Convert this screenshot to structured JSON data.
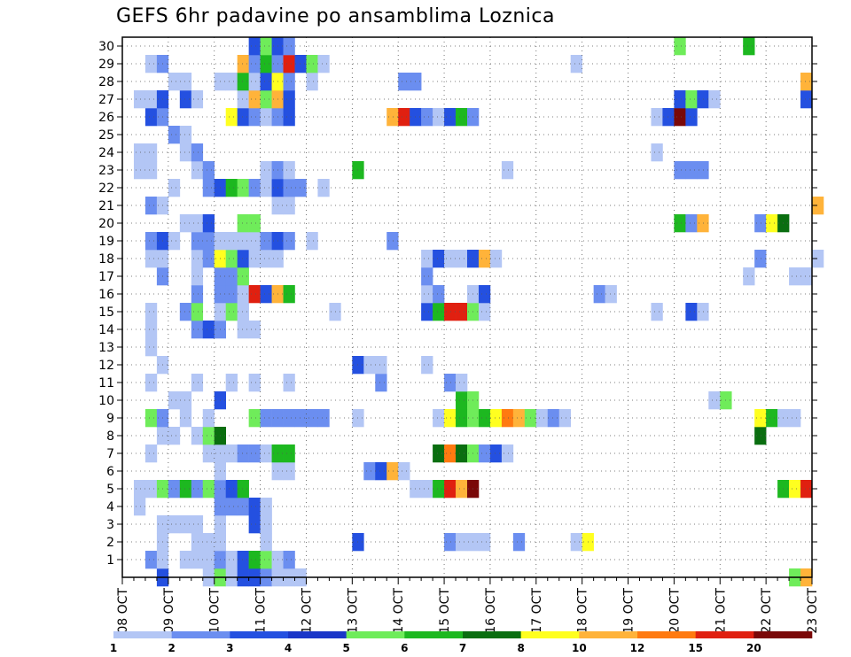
{
  "chart_data": {
    "type": "heatmap",
    "title": "GEFS 6hr padavine po ansamblima Loznica",
    "xlabel": "",
    "ylabel": "",
    "x_axis": {
      "start": "2023-10-08T00:00",
      "end": "2023-10-23T00:00",
      "step_hours": 6,
      "tick_labels": [
        "08 OCT",
        "09 OCT",
        "10 OCT",
        "11 OCT",
        "12 OCT",
        "13 OCT",
        "14 OCT",
        "15 OCT",
        "16 OCT",
        "17 OCT",
        "18 OCT",
        "19 OCT",
        "20 OCT",
        "21 OCT",
        "22 OCT",
        "23 OCT"
      ]
    },
    "y_axis": {
      "range": [
        0,
        30
      ],
      "tick_labels": [
        "1",
        "2",
        "3",
        "4",
        "5",
        "6",
        "7",
        "8",
        "9",
        "10",
        "11",
        "12",
        "13",
        "14",
        "15",
        "16",
        "17",
        "18",
        "19",
        "20",
        "21",
        "22",
        "23",
        "24",
        "25",
        "26",
        "27",
        "28",
        "29",
        "30"
      ]
    },
    "grid": true,
    "legend": {
      "placement": "bottom",
      "labels": [
        "1",
        "2",
        "3",
        "4",
        "5",
        "6",
        "7",
        "8",
        "10",
        "12",
        "15",
        "20"
      ],
      "colors": [
        "#b3c6f5",
        "#6b8ef0",
        "#2450e0",
        "#1a36c8",
        "#6fec5a",
        "#1db820",
        "#0a6e10",
        "#ffff20",
        "#ffb33a",
        "#ff7a10",
        "#e02010",
        "#7a0808"
      ]
    },
    "cell_rows": {
      "30": {
        "10 OCT 18Z": 3,
        "11 OCT 00Z": 5,
        "11 OCT 06Z": 3,
        "11 OCT 12Z": 2,
        "20 OCT 00Z": 5,
        "21 OCT 12Z": 6
      },
      "29": {
        "08 OCT 12Z": 1,
        "08 OCT 18Z": 2,
        "10 OCT 12Z": 10,
        "10 OCT 18Z": 2,
        "11 OCT 00Z": 6,
        "11 OCT 06Z": 2,
        "11 OCT 12Z": 15,
        "11 OCT 18Z": 3,
        "12 OCT 00Z": 5,
        "12 OCT 06Z": 1,
        "17 OCT 18Z": 1
      },
      "28": {
        "09 OCT 00Z": 1,
        "09 OCT 06Z": 1,
        "10 OCT 00Z": 1,
        "10 OCT 06Z": 1,
        "10 OCT 12Z": 6,
        "10 OCT 18Z": 1,
        "11 OCT 00Z": 3,
        "11 OCT 06Z": 8,
        "11 OCT 12Z": 2,
        "12 OCT 00Z": 1,
        "14 OCT 00Z": 2,
        "14 OCT 06Z": 2,
        "22 OCT 18Z": 10
      },
      "27": {
        "08 OCT 06Z": 1,
        "08 OCT 12Z": 1,
        "08 OCT 18Z": 3,
        "09 OCT 06Z": 3,
        "09 OCT 12Z": 1,
        "10 OCT 12Z": 1,
        "10 OCT 18Z": 10,
        "11 OCT 00Z": 5,
        "11 OCT 06Z": 10,
        "11 OCT 12Z": 3,
        "20 OCT 00Z": 3,
        "20 OCT 06Z": 5,
        "20 OCT 12Z": 3,
        "20 OCT 18Z": 1,
        "22 OCT 18Z": 3
      },
      "26": {
        "08 OCT 12Z": 3,
        "08 OCT 18Z": 2,
        "10 OCT 06Z": 8,
        "10 OCT 12Z": 3,
        "10 OCT 18Z": 2,
        "11 OCT 00Z": 1,
        "11 OCT 06Z": 2,
        "11 OCT 12Z": 3,
        "13 OCT 18Z": 10,
        "14 OCT 00Z": 15,
        "14 OCT 06Z": 3,
        "14 OCT 12Z": 2,
        "14 OCT 18Z": 1,
        "15 OCT 00Z": 3,
        "15 OCT 06Z": 6,
        "15 OCT 12Z": 2,
        "19 OCT 12Z": 1,
        "19 OCT 18Z": 3,
        "20 OCT 00Z": 20,
        "20 OCT 06Z": 3
      },
      "25": {
        "09 OCT 00Z": 2,
        "09 OCT 06Z": 1
      },
      "24": {
        "08 OCT 06Z": 1,
        "08 OCT 12Z": 1,
        "09 OCT 06Z": 1,
        "09 OCT 12Z": 2,
        "19 OCT 12Z": 1
      },
      "23": {
        "08 OCT 06Z": 1,
        "08 OCT 12Z": 1,
        "09 OCT 12Z": 1,
        "09 OCT 18Z": 2,
        "11 OCT 00Z": 1,
        "11 OCT 06Z": 2,
        "11 OCT 12Z": 1,
        "13 OCT 00Z": 6,
        "16 OCT 06Z": 1,
        "20 OCT 00Z": 2,
        "20 OCT 06Z": 2,
        "20 OCT 12Z": 2
      },
      "22": {
        "09 OCT 00Z": 1,
        "09 OCT 18Z": 2,
        "10 OCT 00Z": 3,
        "10 OCT 06Z": 6,
        "10 OCT 12Z": 5,
        "10 OCT 18Z": 2,
        "11 OCT 00Z": 1,
        "11 OCT 06Z": 3,
        "11 OCT 12Z": 2,
        "11 OCT 18Z": 2,
        "12 OCT 06Z": 1
      },
      "21": {
        "08 OCT 12Z": 2,
        "08 OCT 18Z": 1,
        "11 OCT 06Z": 1,
        "11 OCT 12Z": 1,
        "23 OCT 00Z": 10
      },
      "20": {
        "09 OCT 06Z": 1,
        "09 OCT 12Z": 1,
        "09 OCT 18Z": 3,
        "10 OCT 12Z": 5,
        "10 OCT 18Z": 5,
        "20 OCT 00Z": 6,
        "20 OCT 06Z": 2,
        "20 OCT 12Z": 10,
        "21 OCT 18Z": 2,
        "22 OCT 00Z": 8,
        "22 OCT 06Z": 7
      },
      "19": {
        "08 OCT 12Z": 2,
        "08 OCT 18Z": 3,
        "09 OCT 00Z": 1,
        "09 OCT 12Z": 2,
        "09 OCT 18Z": 2,
        "10 OCT 00Z": 1,
        "10 OCT 06Z": 1,
        "10 OCT 12Z": 1,
        "10 OCT 18Z": 1,
        "11 OCT 00Z": 2,
        "11 OCT 06Z": 3,
        "11 OCT 12Z": 2,
        "12 OCT 00Z": 1,
        "13 OCT 18Z": 2
      },
      "18": {
        "08 OCT 12Z": 1,
        "08 OCT 18Z": 1,
        "09 OCT 12Z": 1,
        "09 OCT 18Z": 2,
        "10 OCT 00Z": 8,
        "10 OCT 06Z": 5,
        "10 OCT 12Z": 3,
        "10 OCT 18Z": 1,
        "11 OCT 00Z": 1,
        "11 OCT 06Z": 1,
        "14 OCT 12Z": 1,
        "14 OCT 18Z": 3,
        "15 OCT 00Z": 1,
        "15 OCT 06Z": 1,
        "15 OCT 12Z": 3,
        "15 OCT 18Z": 10,
        "16 OCT 00Z": 1,
        "21 OCT 18Z": 2,
        "23 OCT 00Z": 1
      },
      "17": {
        "08 OCT 18Z": 2,
        "09 OCT 12Z": 1,
        "10 OCT 00Z": 2,
        "10 OCT 06Z": 2,
        "10 OCT 12Z": 5,
        "14 OCT 12Z": 2,
        "21 OCT 12Z": 1,
        "22 OCT 12Z": 1,
        "22 OCT 18Z": 1
      },
      "16": {
        "09 OCT 12Z": 2,
        "10 OCT 00Z": 2,
        "10 OCT 06Z": 2,
        "10 OCT 12Z": 1,
        "10 OCT 18Z": 15,
        "11 OCT 00Z": 3,
        "11 OCT 06Z": 10,
        "11 OCT 12Z": 6,
        "14 OCT 12Z": 1,
        "14 OCT 18Z": 2,
        "15 OCT 12Z": 1,
        "15 OCT 18Z": 3,
        "18 OCT 06Z": 2,
        "18 OCT 12Z": 1
      },
      "15": {
        "08 OCT 12Z": 1,
        "09 OCT 06Z": 2,
        "09 OCT 12Z": 5,
        "10 OCT 00Z": 1,
        "10 OCT 06Z": 5,
        "10 OCT 12Z": 1,
        "12 OCT 12Z": 1,
        "14 OCT 12Z": 3,
        "14 OCT 18Z": 6,
        "15 OCT 00Z": 15,
        "15 OCT 06Z": 15,
        "15 OCT 12Z": 5,
        "15 OCT 18Z": 1,
        "19 OCT 12Z": 1,
        "20 OCT 06Z": 3,
        "20 OCT 12Z": 1
      },
      "14": {
        "08 OCT 12Z": 1,
        "09 OCT 12Z": 2,
        "09 OCT 18Z": 3,
        "10 OCT 00Z": 2,
        "10 OCT 12Z": 1,
        "10 OCT 18Z": 1
      },
      "13": {
        "08 OCT 12Z": 1
      },
      "12": {
        "08 OCT 18Z": 1,
        "13 OCT 00Z": 3,
        "13 OCT 06Z": 1,
        "13 OCT 12Z": 1,
        "14 OCT 12Z": 1
      },
      "11": {
        "08 OCT 12Z": 1,
        "09 OCT 12Z": 1,
        "10 OCT 06Z": 1,
        "10 OCT 18Z": 1,
        "11 OCT 12Z": 1,
        "13 OCT 12Z": 2,
        "15 OCT 00Z": 2,
        "15 OCT 06Z": 1
      },
      "10": {
        "09 OCT 00Z": 1,
        "09 OCT 06Z": 1,
        "10 OCT 00Z": 3,
        "15 OCT 06Z": 6,
        "15 OCT 12Z": 5,
        "20 OCT 18Z": 1,
        "21 OCT 00Z": 5
      },
      "9": {
        "08 OCT 12Z": 5,
        "08 OCT 18Z": 2,
        "09 OCT 06Z": 1,
        "09 OCT 18Z": 1,
        "10 OCT 18Z": 5,
        "11 OCT 00Z": 2,
        "11 OCT 06Z": 2,
        "11 OCT 12Z": 2,
        "11 OCT 18Z": 2,
        "12 OCT 00Z": 2,
        "12 OCT 06Z": 2,
        "13 OCT 00Z": 1,
        "14 OCT 18Z": 1,
        "15 OCT 00Z": 8,
        "15 OCT 06Z": 6,
        "15 OCT 12Z": 5,
        "15 OCT 18Z": 6,
        "16 OCT 00Z": 8,
        "16 OCT 06Z": 12,
        "16 OCT 12Z": 10,
        "16 OCT 18Z": 5,
        "17 OCT 00Z": 1,
        "17 OCT 06Z": 2,
        "17 OCT 12Z": 1,
        "21 OCT 18Z": 8,
        "22 OCT 00Z": 6,
        "22 OCT 06Z": 1,
        "22 OCT 12Z": 1
      },
      "8": {
        "08 OCT 18Z": 1,
        "09 OCT 00Z": 1,
        "09 OCT 12Z": 1,
        "09 OCT 18Z": 5,
        "10 OCT 00Z": 7,
        "21 OCT 18Z": 7
      },
      "7": {
        "08 OCT 12Z": 1,
        "09 OCT 18Z": 1,
        "10 OCT 00Z": 1,
        "10 OCT 06Z": 1,
        "10 OCT 12Z": 2,
        "10 OCT 18Z": 2,
        "11 OCT 00Z": 1,
        "11 OCT 06Z": 6,
        "11 OCT 12Z": 6,
        "14 OCT 18Z": 7,
        "15 OCT 00Z": 12,
        "15 OCT 06Z": 7,
        "15 OCT 12Z": 5,
        "15 OCT 18Z": 2,
        "16 OCT 00Z": 3,
        "16 OCT 06Z": 1
      },
      "6": {
        "10 OCT 00Z": 1,
        "11 OCT 06Z": 1,
        "11 OCT 12Z": 1,
        "13 OCT 06Z": 2,
        "13 OCT 12Z": 3,
        "13 OCT 18Z": 10,
        "14 OCT 00Z": 1
      },
      "5": {
        "08 OCT 06Z": 1,
        "08 OCT 12Z": 1,
        "08 OCT 18Z": 5,
        "09 OCT 00Z": 2,
        "09 OCT 06Z": 6,
        "09 OCT 12Z": 2,
        "09 OCT 18Z": 5,
        "10 OCT 00Z": 2,
        "10 OCT 06Z": 3,
        "10 OCT 12Z": 6,
        "14 OCT 06Z": 1,
        "14 OCT 12Z": 1,
        "14 OCT 18Z": 6,
        "15 OCT 00Z": 15,
        "15 OCT 06Z": 10,
        "15 OCT 12Z": 20,
        "22 OCT 06Z": 6,
        "22 OCT 12Z": 8,
        "22 OCT 18Z": 15
      },
      "4": {
        "08 OCT 06Z": 1,
        "10 OCT 00Z": 2,
        "10 OCT 06Z": 2,
        "10 OCT 12Z": 2,
        "10 OCT 18Z": 3,
        "11 OCT 00Z": 1
      },
      "3": {
        "08 OCT 18Z": 1,
        "09 OCT 00Z": 1,
        "09 OCT 06Z": 1,
        "09 OCT 12Z": 1,
        "10 OCT 00Z": 1,
        "10 OCT 18Z": 3,
        "11 OCT 00Z": 1
      },
      "2": {
        "08 OCT 18Z": 1,
        "09 OCT 12Z": 1,
        "09 OCT 18Z": 1,
        "10 OCT 00Z": 1,
        "11 OCT 00Z": 1,
        "13 OCT 00Z": 3,
        "15 OCT 00Z": 2,
        "15 OCT 06Z": 1,
        "15 OCT 12Z": 1,
        "15 OCT 18Z": 1,
        "16 OCT 12Z": 2,
        "17 OCT 18Z": 1,
        "18 OCT 00Z": 8
      },
      "1": {
        "08 OCT 12Z": 2,
        "08 OCT 18Z": 1,
        "09 OCT 06Z": 1,
        "09 OCT 12Z": 1,
        "09 OCT 18Z": 1,
        "10 OCT 00Z": 2,
        "10 OCT 06Z": 1,
        "10 OCT 12Z": 3,
        "10 OCT 18Z": 6,
        "11 OCT 00Z": 5,
        "11 OCT 06Z": 1,
        "11 OCT 12Z": 2
      },
      "0": {
        "08 OCT 18Z": 3,
        "09 OCT 18Z": 1,
        "10 OCT 00Z": 5,
        "10 OCT 06Z": 1,
        "10 OCT 12Z": 3,
        "10 OCT 18Z": 3,
        "11 OCT 00Z": 2,
        "11 OCT 06Z": 1,
        "11 OCT 12Z": 1,
        "11 OCT 18Z": 1,
        "22 OCT 12Z": 5,
        "22 OCT 18Z": 10
      }
    }
  }
}
